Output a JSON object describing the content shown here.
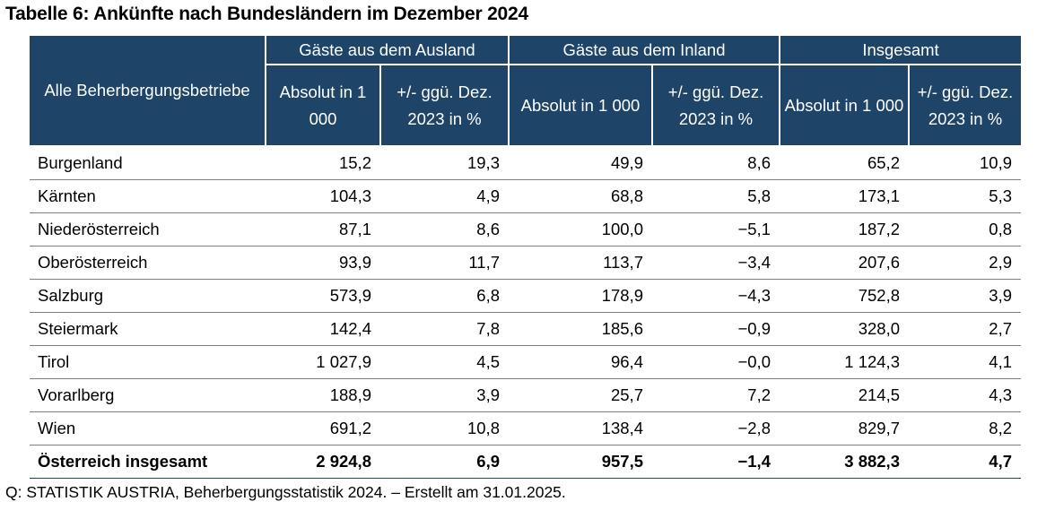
{
  "title": "Tabelle 6: Ankünfte nach Bundesländern im Dezember 2024",
  "header": {
    "corner": "Alle Beherbergungsbetriebe",
    "groups": [
      "Gäste aus dem Ausland",
      "Gäste aus dem Inland",
      "Insgesamt"
    ],
    "sub": [
      "Absolut in 1 000",
      "+/- ggü. Dez. 2023 in %",
      "Absolut in 1 000",
      "+/- ggü. Dez. 2023 in %",
      "Absolut in 1 000",
      "+/- ggü. Dez. 2023 in %"
    ]
  },
  "rows": [
    [
      "Burgenland",
      "15,2",
      "19,3",
      "49,9",
      "8,6",
      "65,2",
      "10,9"
    ],
    [
      "Kärnten",
      "104,3",
      "4,9",
      "68,8",
      "5,8",
      "173,1",
      "5,3"
    ],
    [
      "Niederösterreich",
      "87,1",
      "8,6",
      "100,0",
      "−5,1",
      "187,2",
      "0,8"
    ],
    [
      "Oberösterreich",
      "93,9",
      "11,7",
      "113,7",
      "−3,4",
      "207,6",
      "2,9"
    ],
    [
      "Salzburg",
      "573,9",
      "6,8",
      "178,9",
      "−4,3",
      "752,8",
      "3,9"
    ],
    [
      "Steiermark",
      "142,4",
      "7,8",
      "185,6",
      "−0,9",
      "328,0",
      "2,7"
    ],
    [
      "Tirol",
      "1 027,9",
      "4,5",
      "96,4",
      "−0,0",
      "1 124,3",
      "4,1"
    ],
    [
      "Vorarlberg",
      "188,9",
      "3,9",
      "25,7",
      "7,2",
      "214,5",
      "4,3"
    ],
    [
      "Wien",
      "691,2",
      "10,8",
      "138,4",
      "−2,8",
      "829,7",
      "8,2"
    ]
  ],
  "total": [
    "Österreich insgesamt",
    "2 924,8",
    "6,9",
    "957,5",
    "−1,4",
    "3 882,3",
    "4,7"
  ],
  "source": "Q: STATISTIK AUSTRIA, Beherbergungsstatistik 2024. – Erstellt am 31.01.2025.",
  "colors": {
    "header_bg": "#1e4468",
    "header_text": "#ffffff"
  }
}
